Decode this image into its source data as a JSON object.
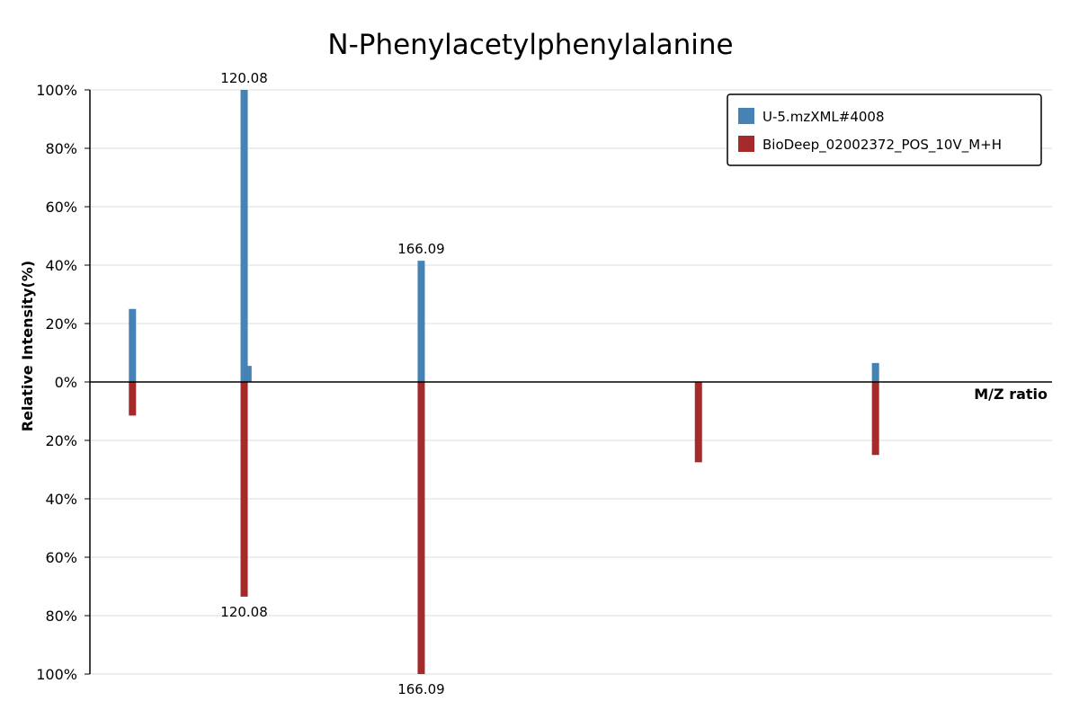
{
  "chart_data": {
    "type": "bar",
    "title": "N-Phenylacetylphenylalanine",
    "xlabel": "M/Z ratio",
    "ylabel": "Relative Intensity(%)",
    "yticks": [
      "100%",
      "80%",
      "60%",
      "40%",
      "20%",
      "0%",
      "20%",
      "40%",
      "60%",
      "80%",
      "100%"
    ],
    "ylim": [
      -100,
      100
    ],
    "grid": true,
    "legend_position": "top-right",
    "series": [
      {
        "name": "U-5.mzXML#4008",
        "color": "#4682b4",
        "direction": "up",
        "peaks": [
          {
            "mz": 91.05,
            "intensity": 25,
            "label": ""
          },
          {
            "mz": 120.08,
            "intensity": 100,
            "label": "120.08"
          },
          {
            "mz": 121.08,
            "intensity": 5.5,
            "label": ""
          },
          {
            "mz": 166.09,
            "intensity": 41.5,
            "label": "166.09"
          },
          {
            "mz": 284.13,
            "intensity": 6.5,
            "label": ""
          }
        ]
      },
      {
        "name": "BioDeep_02002372_POS_10V_M+H",
        "color": "#a52a2a",
        "direction": "down",
        "peaks": [
          {
            "mz": 91.05,
            "intensity": 11.5,
            "label": ""
          },
          {
            "mz": 120.08,
            "intensity": 73.5,
            "label": "120.08"
          },
          {
            "mz": 166.09,
            "intensity": 100,
            "label": "166.09"
          },
          {
            "mz": 238.12,
            "intensity": 27.5,
            "label": ""
          },
          {
            "mz": 284.13,
            "intensity": 25,
            "label": ""
          }
        ]
      }
    ]
  }
}
